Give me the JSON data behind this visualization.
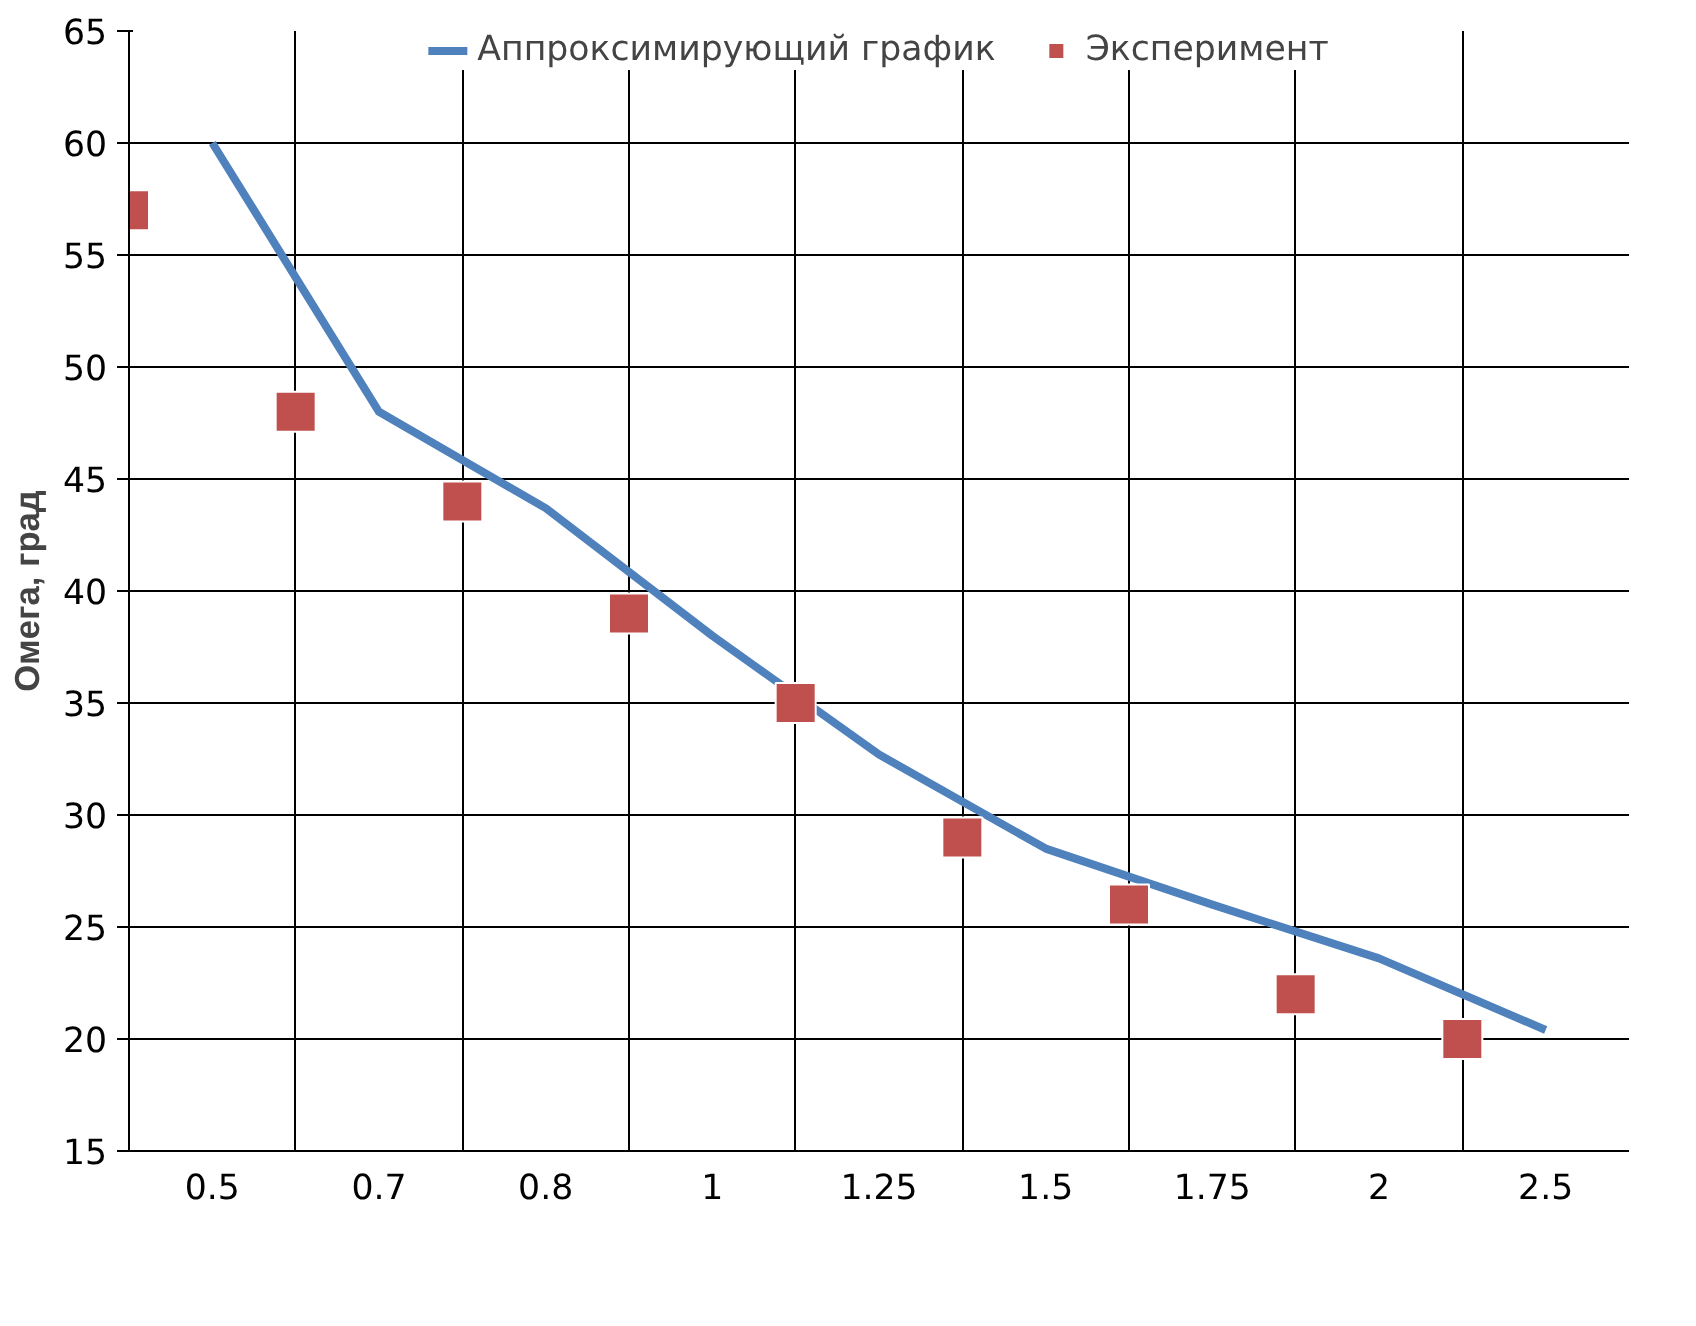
{
  "chart_data": {
    "type": "line",
    "ylabel": "Омега, град",
    "categories": [
      null,
      "0.5",
      null,
      "0.7",
      null,
      "0.8",
      null,
      "1",
      null,
      "1.25",
      null,
      "1.5",
      null,
      "1.75",
      null,
      "2",
      null,
      "2.5",
      null
    ],
    "ylim": [
      15,
      65
    ],
    "yticks": [
      15,
      20,
      25,
      30,
      35,
      40,
      45,
      50,
      55,
      60,
      65
    ],
    "grid": true,
    "legend": "top",
    "series": [
      {
        "name": "Аппроксимирующий график",
        "type": "line",
        "color": "#4f81bd",
        "line_style": "solid",
        "marker": "none",
        "x": [
          "0.5",
          "0.7",
          "0.8",
          "1",
          "1.25",
          "1.5",
          "1.75",
          "2",
          "2.5"
        ],
        "values": [
          60,
          48,
          43.7,
          38,
          32.7,
          28.5,
          26,
          23.6,
          20.4
        ]
      },
      {
        "name": "Эксперимент",
        "type": "scatter",
        "color": "#c0504d",
        "marker": "square",
        "values": [
          57,
          null,
          48,
          null,
          44,
          null,
          39,
          null,
          35,
          null,
          29,
          null,
          26,
          null,
          22,
          null,
          20,
          null,
          null
        ]
      }
    ]
  }
}
